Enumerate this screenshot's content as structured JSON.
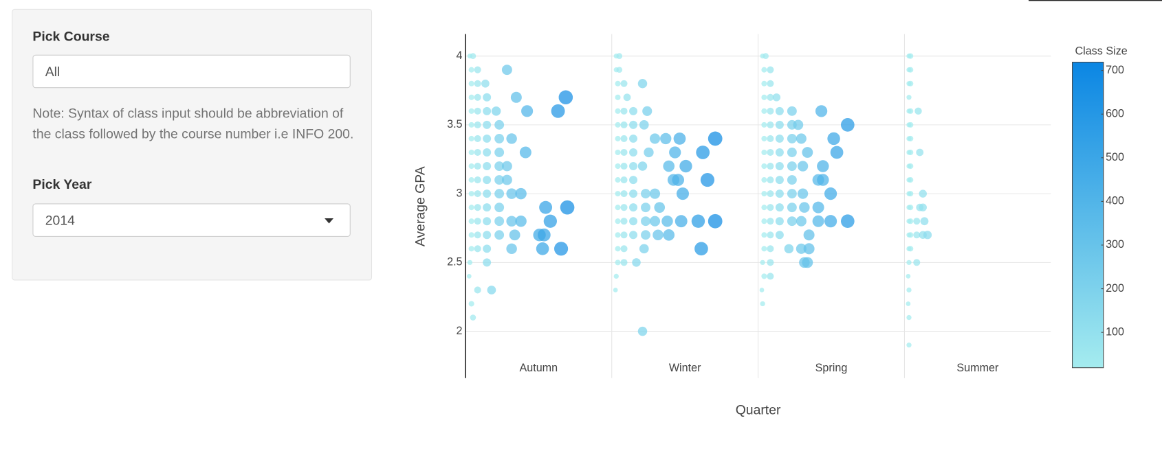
{
  "sidebar": {
    "course_label": "Pick Course",
    "course_value": "All",
    "note": "Note: Syntax of class input should be abbreviation of the class followed by the course number i.e INFO 200.",
    "year_label": "Pick Year",
    "year_value": "2014"
  },
  "chart_data": {
    "type": "scatter",
    "x_label": "Quarter",
    "y_label": "Average GPA",
    "colorbar_title": "Class Size",
    "categories": [
      "Autumn",
      "Winter",
      "Spring",
      "Summer"
    ],
    "ylim": [
      1.66,
      4.16
    ],
    "yticks": [
      2,
      2.5,
      3,
      3.5,
      4
    ],
    "grid": true,
    "clim": [
      19,
      719
    ],
    "cticks": [
      100,
      200,
      300,
      400,
      500,
      600,
      700
    ],
    "colorscale": [
      "#a5ecef",
      "#0b86e3"
    ],
    "groups": [
      {
        "points": [
          [
            4.0,
            10
          ],
          [
            4.0,
            30
          ],
          [
            3.9,
            20
          ],
          [
            3.9,
            60
          ],
          [
            3.9,
            250
          ],
          [
            3.8,
            20
          ],
          [
            3.8,
            60
          ],
          [
            3.8,
            110
          ],
          [
            3.7,
            20
          ],
          [
            3.7,
            60
          ],
          [
            3.7,
            120
          ],
          [
            3.7,
            310
          ],
          [
            3.7,
            630
          ],
          [
            3.6,
            20
          ],
          [
            3.6,
            60
          ],
          [
            3.6,
            120
          ],
          [
            3.6,
            180
          ],
          [
            3.6,
            380
          ],
          [
            3.6,
            580
          ],
          [
            3.5,
            20
          ],
          [
            3.5,
            60
          ],
          [
            3.5,
            120
          ],
          [
            3.5,
            200
          ],
          [
            3.4,
            20
          ],
          [
            3.4,
            60
          ],
          [
            3.4,
            120
          ],
          [
            3.4,
            200
          ],
          [
            3.4,
            280
          ],
          [
            3.3,
            20
          ],
          [
            3.3,
            60
          ],
          [
            3.3,
            120
          ],
          [
            3.3,
            200
          ],
          [
            3.3,
            370
          ],
          [
            3.2,
            20
          ],
          [
            3.2,
            60
          ],
          [
            3.2,
            120
          ],
          [
            3.2,
            200
          ],
          [
            3.2,
            250
          ],
          [
            3.1,
            20
          ],
          [
            3.1,
            60
          ],
          [
            3.1,
            120
          ],
          [
            3.1,
            200
          ],
          [
            3.1,
            250
          ],
          [
            3.0,
            20
          ],
          [
            3.0,
            60
          ],
          [
            3.0,
            120
          ],
          [
            3.0,
            200
          ],
          [
            3.0,
            280
          ],
          [
            3.0,
            340
          ],
          [
            2.9,
            20
          ],
          [
            2.9,
            60
          ],
          [
            2.9,
            120
          ],
          [
            2.9,
            200
          ],
          [
            2.9,
            500
          ],
          [
            2.9,
            640
          ],
          [
            2.8,
            20
          ],
          [
            2.8,
            60
          ],
          [
            2.8,
            120
          ],
          [
            2.8,
            200
          ],
          [
            2.8,
            280
          ],
          [
            2.8,
            340
          ],
          [
            2.8,
            530
          ],
          [
            2.7,
            20
          ],
          [
            2.7,
            60
          ],
          [
            2.7,
            120
          ],
          [
            2.7,
            200
          ],
          [
            2.7,
            300
          ],
          [
            2.7,
            460
          ],
          [
            2.7,
            490
          ],
          [
            2.6,
            20
          ],
          [
            2.6,
            60
          ],
          [
            2.6,
            120
          ],
          [
            2.6,
            280
          ],
          [
            2.6,
            480
          ],
          [
            2.6,
            600
          ],
          [
            2.5,
            10
          ],
          [
            2.5,
            120
          ],
          [
            2.4,
            5
          ],
          [
            2.3,
            60
          ],
          [
            2.3,
            150
          ],
          [
            2.2,
            20
          ],
          [
            2.1,
            30
          ]
        ]
      },
      {
        "points": [
          [
            4.0,
            10
          ],
          [
            4.0,
            30
          ],
          [
            3.9,
            10
          ],
          [
            3.9,
            30
          ],
          [
            3.8,
            20
          ],
          [
            3.8,
            60
          ],
          [
            3.8,
            180
          ],
          [
            3.7,
            20
          ],
          [
            3.7,
            80
          ],
          [
            3.6,
            20
          ],
          [
            3.6,
            60
          ],
          [
            3.6,
            120
          ],
          [
            3.6,
            210
          ],
          [
            3.5,
            20
          ],
          [
            3.5,
            60
          ],
          [
            3.5,
            120
          ],
          [
            3.5,
            190
          ],
          [
            3.4,
            20
          ],
          [
            3.4,
            60
          ],
          [
            3.4,
            120
          ],
          [
            3.4,
            260
          ],
          [
            3.4,
            330
          ],
          [
            3.4,
            420
          ],
          [
            3.4,
            650
          ],
          [
            3.3,
            20
          ],
          [
            3.3,
            60
          ],
          [
            3.3,
            120
          ],
          [
            3.3,
            220
          ],
          [
            3.3,
            390
          ],
          [
            3.3,
            570
          ],
          [
            3.2,
            20
          ],
          [
            3.2,
            60
          ],
          [
            3.2,
            120
          ],
          [
            3.2,
            180
          ],
          [
            3.2,
            350
          ],
          [
            3.2,
            460
          ],
          [
            3.1,
            20
          ],
          [
            3.1,
            60
          ],
          [
            3.1,
            120
          ],
          [
            3.1,
            380
          ],
          [
            3.1,
            410
          ],
          [
            3.1,
            600
          ],
          [
            3.0,
            20
          ],
          [
            3.0,
            60
          ],
          [
            3.0,
            120
          ],
          [
            3.0,
            200
          ],
          [
            3.0,
            260
          ],
          [
            3.0,
            440
          ],
          [
            2.9,
            20
          ],
          [
            2.9,
            60
          ],
          [
            2.9,
            120
          ],
          [
            2.9,
            200
          ],
          [
            2.9,
            290
          ],
          [
            2.8,
            20
          ],
          [
            2.8,
            60
          ],
          [
            2.8,
            120
          ],
          [
            2.8,
            200
          ],
          [
            2.8,
            260
          ],
          [
            2.8,
            340
          ],
          [
            2.8,
            430
          ],
          [
            2.8,
            540
          ],
          [
            2.8,
            650
          ],
          [
            2.7,
            20
          ],
          [
            2.7,
            60
          ],
          [
            2.7,
            120
          ],
          [
            2.7,
            200
          ],
          [
            2.7,
            280
          ],
          [
            2.7,
            350
          ],
          [
            2.6,
            20
          ],
          [
            2.6,
            60
          ],
          [
            2.6,
            190
          ],
          [
            2.6,
            560
          ],
          [
            2.5,
            20
          ],
          [
            2.5,
            60
          ],
          [
            2.5,
            140
          ],
          [
            2.4,
            10
          ],
          [
            2.3,
            5
          ],
          [
            2.0,
            180
          ]
        ]
      },
      {
        "points": [
          [
            4.0,
            10
          ],
          [
            4.0,
            30
          ],
          [
            3.9,
            20
          ],
          [
            3.9,
            60
          ],
          [
            3.8,
            20
          ],
          [
            3.8,
            60
          ],
          [
            3.7,
            20
          ],
          [
            3.7,
            60
          ],
          [
            3.7,
            100
          ],
          [
            3.6,
            20
          ],
          [
            3.6,
            60
          ],
          [
            3.6,
            120
          ],
          [
            3.6,
            200
          ],
          [
            3.6,
            390
          ],
          [
            3.5,
            20
          ],
          [
            3.5,
            60
          ],
          [
            3.5,
            120
          ],
          [
            3.5,
            200
          ],
          [
            3.5,
            240
          ],
          [
            3.5,
            560
          ],
          [
            3.4,
            20
          ],
          [
            3.4,
            60
          ],
          [
            3.4,
            120
          ],
          [
            3.4,
            200
          ],
          [
            3.4,
            260
          ],
          [
            3.4,
            470
          ],
          [
            3.3,
            20
          ],
          [
            3.3,
            60
          ],
          [
            3.3,
            120
          ],
          [
            3.3,
            200
          ],
          [
            3.3,
            300
          ],
          [
            3.3,
            490
          ],
          [
            3.2,
            20
          ],
          [
            3.2,
            60
          ],
          [
            3.2,
            120
          ],
          [
            3.2,
            200
          ],
          [
            3.2,
            270
          ],
          [
            3.2,
            400
          ],
          [
            3.1,
            20
          ],
          [
            3.1,
            60
          ],
          [
            3.1,
            120
          ],
          [
            3.1,
            200
          ],
          [
            3.1,
            370
          ],
          [
            3.1,
            400
          ],
          [
            3.0,
            20
          ],
          [
            3.0,
            60
          ],
          [
            3.0,
            120
          ],
          [
            3.0,
            200
          ],
          [
            3.0,
            270
          ],
          [
            3.0,
            450
          ],
          [
            2.9,
            20
          ],
          [
            2.9,
            60
          ],
          [
            2.9,
            120
          ],
          [
            2.9,
            200
          ],
          [
            2.9,
            280
          ],
          [
            2.9,
            370
          ],
          [
            2.8,
            20
          ],
          [
            2.8,
            60
          ],
          [
            2.8,
            120
          ],
          [
            2.8,
            200
          ],
          [
            2.8,
            260
          ],
          [
            2.8,
            370
          ],
          [
            2.8,
            450
          ],
          [
            2.8,
            560
          ],
          [
            2.7,
            20
          ],
          [
            2.7,
            60
          ],
          [
            2.7,
            120
          ],
          [
            2.7,
            310
          ],
          [
            2.6,
            20
          ],
          [
            2.6,
            60
          ],
          [
            2.6,
            180
          ],
          [
            2.6,
            260
          ],
          [
            2.6,
            310
          ],
          [
            2.5,
            10
          ],
          [
            2.5,
            60
          ],
          [
            2.5,
            280
          ],
          [
            2.5,
            300
          ],
          [
            2.4,
            20
          ],
          [
            2.4,
            60
          ],
          [
            2.3,
            5
          ],
          [
            2.2,
            10
          ]
        ]
      },
      {
        "points": [
          [
            4.0,
            10
          ],
          [
            4.0,
            20
          ],
          [
            3.9,
            10
          ],
          [
            3.9,
            20
          ],
          [
            3.8,
            10
          ],
          [
            3.8,
            20
          ],
          [
            3.7,
            10
          ],
          [
            3.6,
            10
          ],
          [
            3.6,
            20
          ],
          [
            3.6,
            70
          ],
          [
            3.5,
            10
          ],
          [
            3.5,
            20
          ],
          [
            3.4,
            10
          ],
          [
            3.4,
            20
          ],
          [
            3.3,
            10
          ],
          [
            3.3,
            20
          ],
          [
            3.3,
            80
          ],
          [
            3.2,
            10
          ],
          [
            3.2,
            20
          ],
          [
            3.1,
            10
          ],
          [
            3.1,
            20
          ],
          [
            3.0,
            10
          ],
          [
            3.0,
            20
          ],
          [
            3.0,
            100
          ],
          [
            2.9,
            10
          ],
          [
            2.9,
            20
          ],
          [
            2.9,
            80
          ],
          [
            2.9,
            100
          ],
          [
            2.8,
            10
          ],
          [
            2.8,
            20
          ],
          [
            2.8,
            60
          ],
          [
            2.8,
            110
          ],
          [
            2.7,
            10
          ],
          [
            2.7,
            20
          ],
          [
            2.7,
            60
          ],
          [
            2.7,
            100
          ],
          [
            2.7,
            130
          ],
          [
            2.6,
            10
          ],
          [
            2.6,
            20
          ],
          [
            2.5,
            10
          ],
          [
            2.5,
            60
          ],
          [
            2.4,
            5
          ],
          [
            2.3,
            10
          ],
          [
            2.2,
            5
          ],
          [
            2.1,
            10
          ],
          [
            1.9,
            10
          ]
        ]
      }
    ]
  }
}
